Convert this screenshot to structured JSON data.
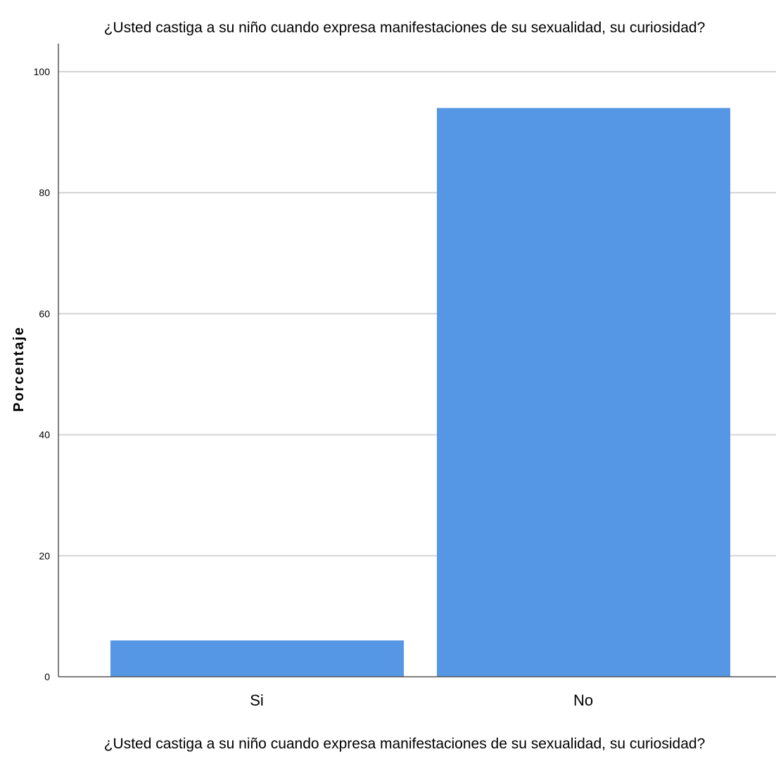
{
  "chart_data": {
    "type": "bar",
    "title": "¿Usted castiga a su niño cuando expresa manifestaciones de su sexualidad, su curiosidad?",
    "xlabel": "¿Usted castiga a su niño cuando expresa manifestaciones de su sexualidad, su curiosidad?",
    "ylabel": "Porcentaje",
    "categories": [
      "Si",
      "No"
    ],
    "values": [
      6,
      94
    ],
    "ylim": [
      0,
      100
    ],
    "yticks": [
      0,
      20,
      40,
      60,
      80,
      100
    ],
    "grid": true,
    "bar_color": "#5596e5",
    "grid_color": "#d4d4d4",
    "axis_color": "#555555"
  }
}
